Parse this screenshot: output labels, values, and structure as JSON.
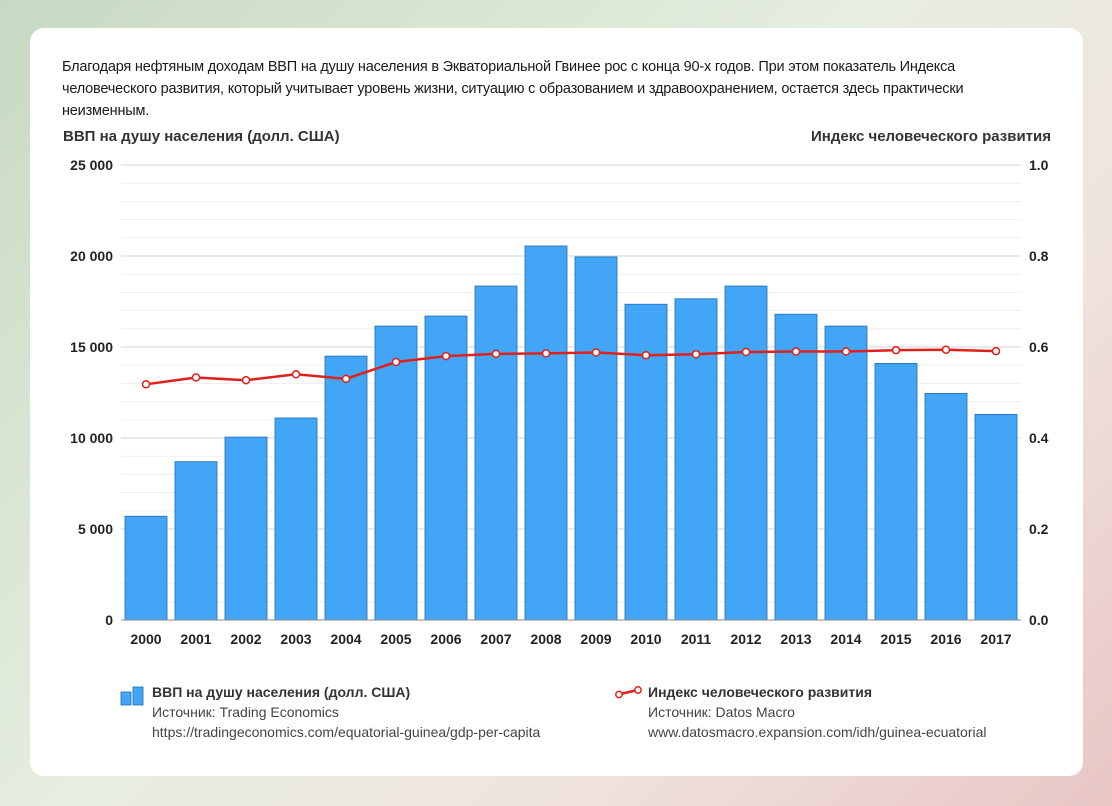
{
  "intro_text": "Благодаря нефтяным доходам ВВП на душу населения в Экваториальной Гвинее рос с конца 90-х годов. При этом показатель Индекса человеческого развития, который учитывает уровень жизни, ситуацию с образованием и здравоохранением, остается здесь практически неизменным.",
  "colors": {
    "bar": "#42a5f5",
    "bar_stroke": "#1e6fb5",
    "line": "#e0201b",
    "marker_fill": "#ffffff",
    "grid": "#e2e2e2"
  },
  "chart_data": {
    "type": "bar",
    "categories": [
      "2000",
      "2001",
      "2002",
      "2003",
      "2004",
      "2005",
      "2006",
      "2007",
      "2008",
      "2009",
      "2010",
      "2011",
      "2012",
      "2013",
      "2014",
      "2015",
      "2016",
      "2017"
    ],
    "series": [
      {
        "name": "ВВП на душу населения (долл. США)",
        "type": "bar",
        "axis": "left",
        "values": [
          5700,
          8700,
          10050,
          11100,
          14500,
          16150,
          16700,
          18350,
          20550,
          19950,
          17350,
          17650,
          18350,
          16800,
          16150,
          14100,
          12450,
          11300
        ]
      },
      {
        "name": "Индекс человеческого развития",
        "type": "line",
        "axis": "right",
        "values": [
          0.518,
          0.533,
          0.527,
          0.54,
          0.53,
          0.567,
          0.58,
          0.585,
          0.586,
          0.588,
          0.582,
          0.584,
          0.589,
          0.59,
          0.59,
          0.593,
          0.594,
          0.591
        ]
      }
    ],
    "ylabel_left": "ВВП на душу населения (долл. США)",
    "ylabel_right": "Индекс человеческого развития",
    "ylim_left": [
      0,
      25000
    ],
    "ylim_right": [
      0,
      1.0
    ],
    "yticks_left": [
      "0",
      "5 000",
      "10 000",
      "15 000",
      "20 000",
      "25 000"
    ],
    "yticks_right": [
      "0.0",
      "0.2",
      "0.4",
      "0.6",
      "0.8",
      "1.0"
    ],
    "grid": true,
    "legend_position": "bottom"
  },
  "legend": {
    "gdp": {
      "name": "ВВП на душу населения (долл. США)",
      "source": "Источник: Trading Economics",
      "url": "https://tradingeconomics.com/equatorial-guinea/gdp-per-capita"
    },
    "hdi": {
      "name": "Индекс человеческого развития",
      "source": "Источник: Datos Macro",
      "url": "www.datosmacro.expansion.com/idh/guinea-ecuatorial"
    }
  }
}
